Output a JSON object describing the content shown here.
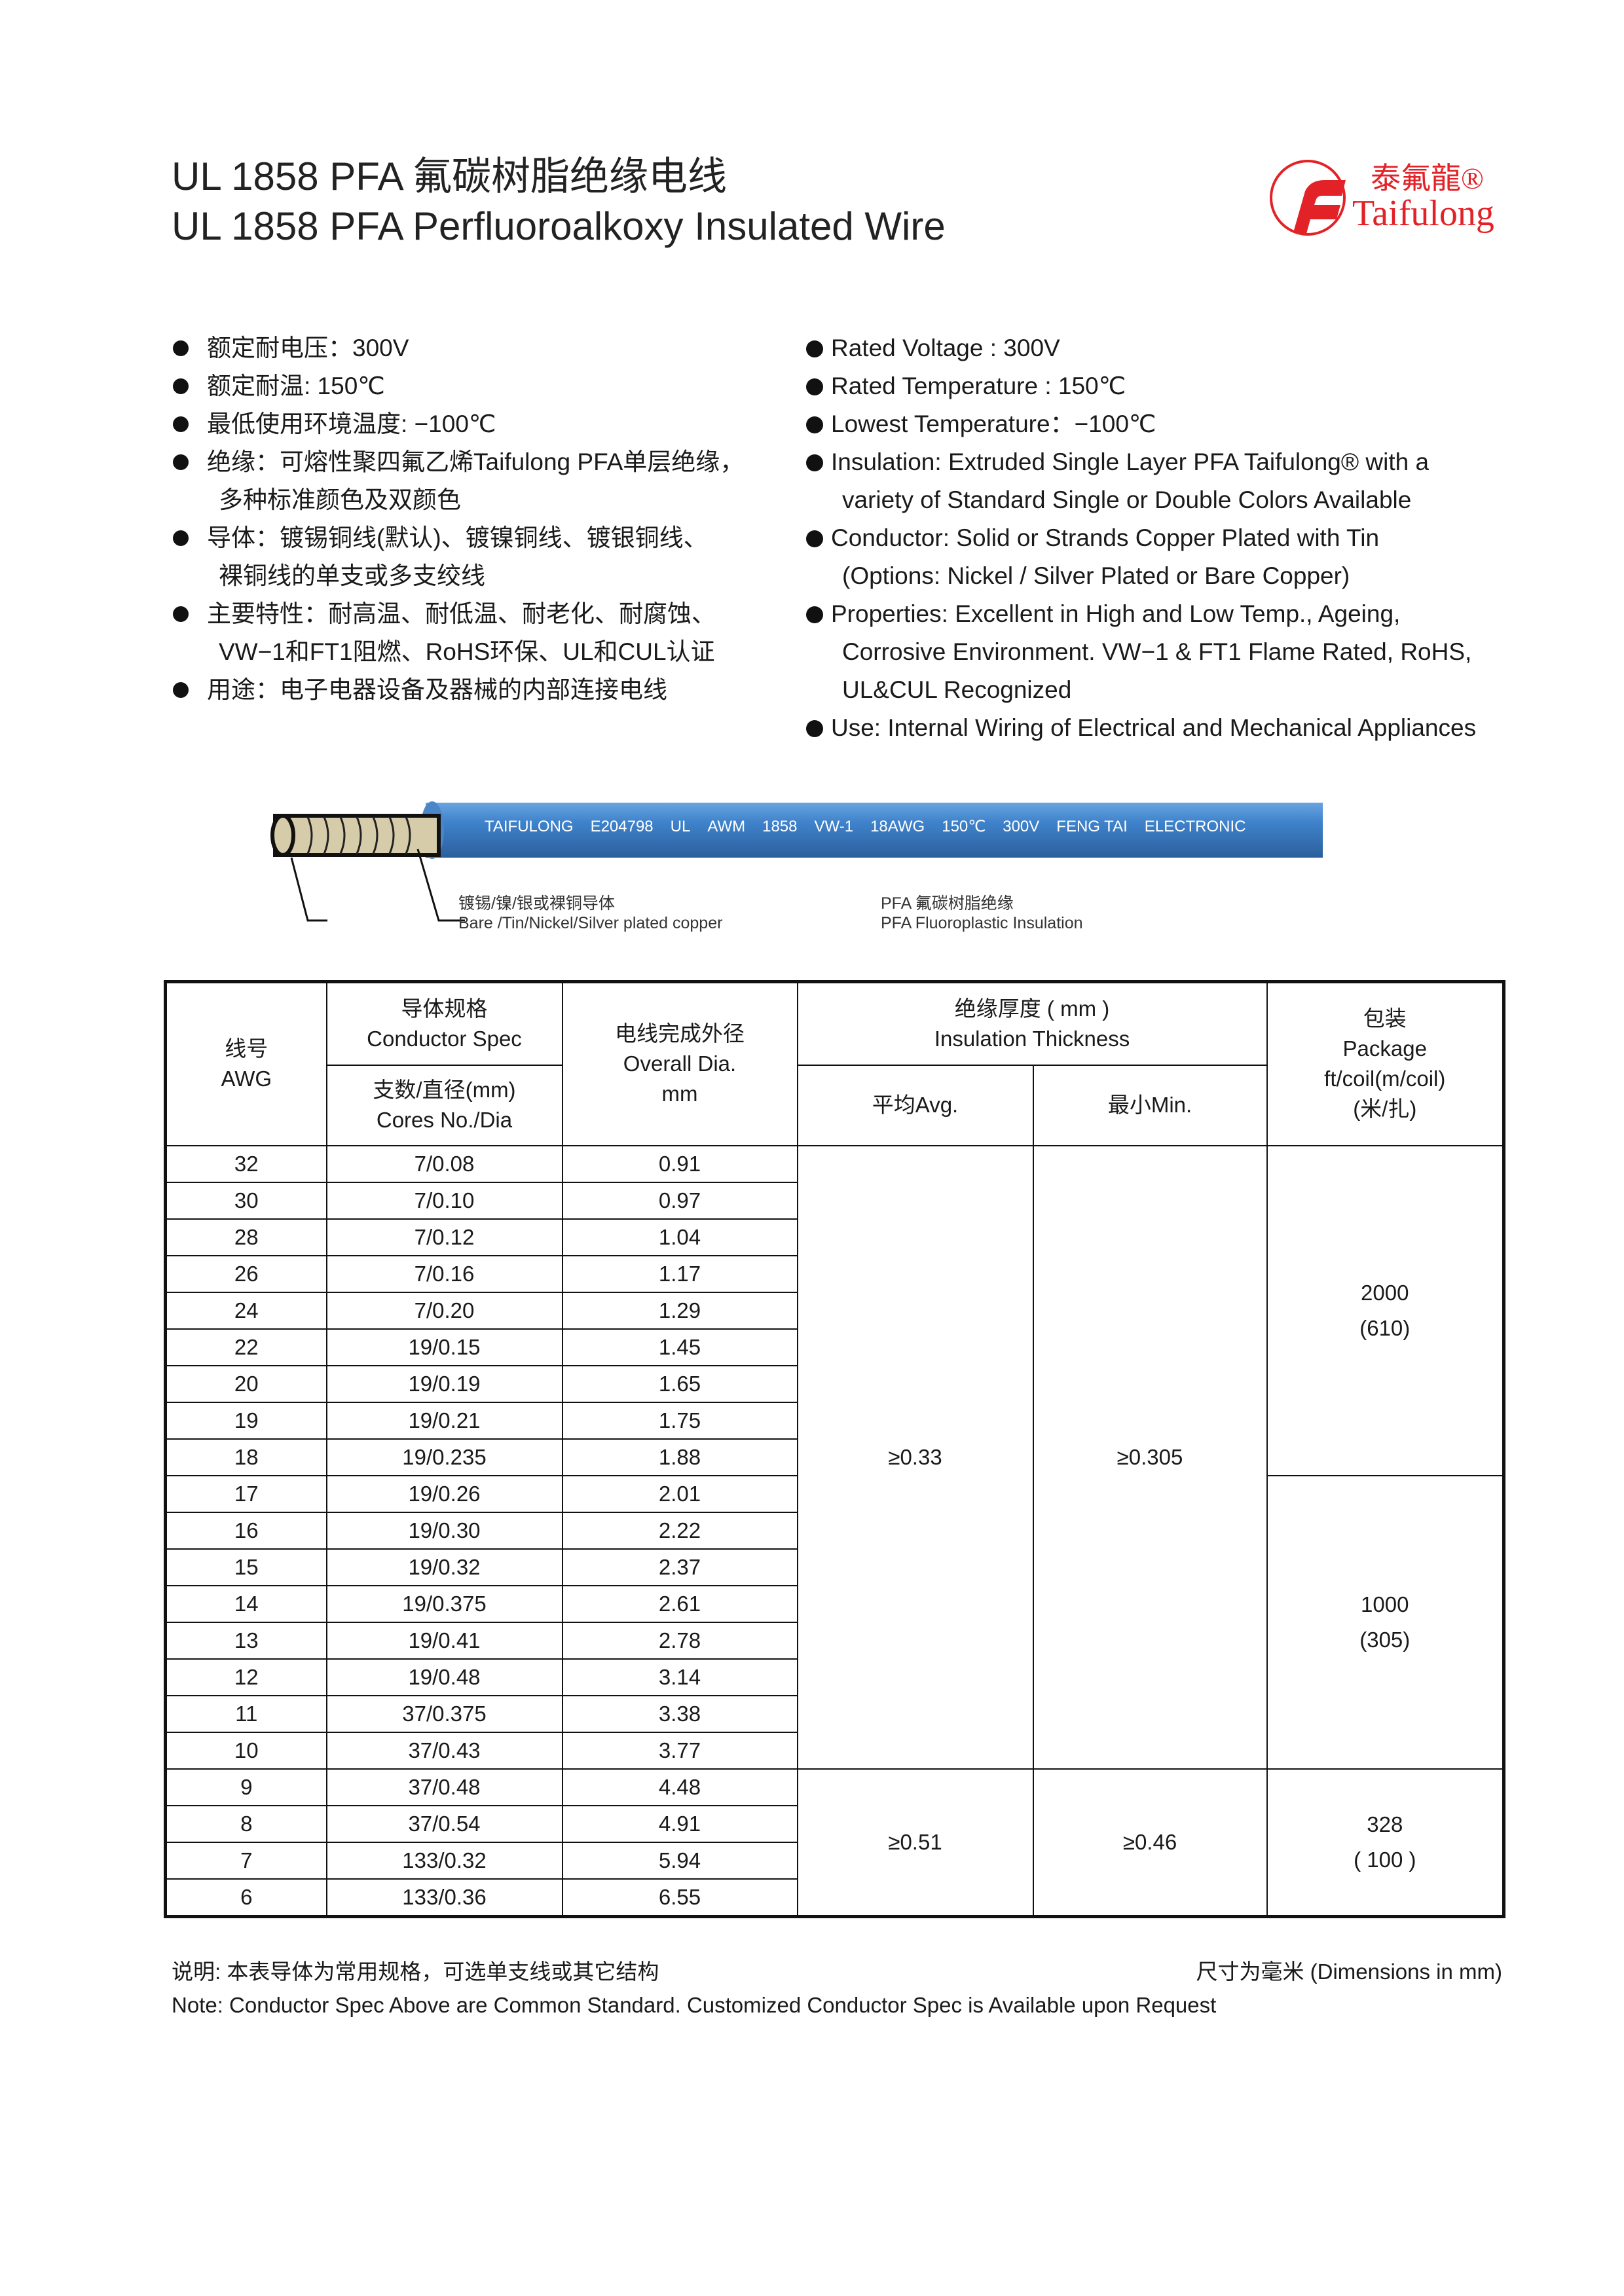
{
  "header": {
    "title_cn": "UL 1858 PFA 氟碳树脂绝缘电线",
    "title_en": "UL 1858 PFA Perfluoroalkoxy Insulated Wire",
    "logo": {
      "cn": "泰氟龍®",
      "en": "Taifulong",
      "color": "#e32227"
    }
  },
  "features_cn": [
    {
      "text": "额定耐电压：300V",
      "bullet": true
    },
    {
      "text": "额定耐温: 150℃",
      "bullet": true
    },
    {
      "text": "最低使用环境温度: −100℃",
      "bullet": true
    },
    {
      "text": "绝缘：可熔性聚四氟乙烯Taifulong PFA单层绝缘，",
      "bullet": true
    },
    {
      "text": "多种标准颜色及双颜色",
      "bullet": false
    },
    {
      "text": "导体：镀锡铜线(默认)、镀镍铜线、镀银铜线、",
      "bullet": true
    },
    {
      "text": "裸铜线的单支或多支绞线",
      "bullet": false
    },
    {
      "text": "主要特性：耐高温、耐低温、耐老化、耐腐蚀、",
      "bullet": true
    },
    {
      "text": "VW−1和FT1阻燃、RoHS环保、UL和CUL认证",
      "bullet": false
    },
    {
      "text": "用途：电子电器设备及器械的内部连接电线",
      "bullet": true
    }
  ],
  "features_en": [
    {
      "text": "Rated Voltage : 300V",
      "bullet": true
    },
    {
      "text": "Rated Temperature : 150℃",
      "bullet": true
    },
    {
      "text": "Lowest Temperature：−100℃",
      "bullet": true
    },
    {
      "text": "Insulation: Extruded Single Layer PFA Taifulong® with a",
      "bullet": true
    },
    {
      "text": "variety of Standard Single or Double Colors Available",
      "bullet": false
    },
    {
      "text": "Conductor: Solid or Strands Copper Plated with Tin",
      "bullet": true
    },
    {
      "text": "(Options: Nickel / Silver Plated or Bare Copper)",
      "bullet": false
    },
    {
      "text": "Properties: Excellent in High and Low Temp., Ageing,",
      "bullet": true
    },
    {
      "text": "Corrosive Environment. VW−1 & FT1 Flame Rated, RoHS,",
      "bullet": false
    },
    {
      "text": "UL&CUL Recognized",
      "bullet": false
    },
    {
      "text": "Use: Internal Wiring of Electrical and Mechanical Appliances",
      "bullet": true
    }
  ],
  "cable": {
    "print": [
      "TAIFULONG",
      "E204798",
      "UL",
      "AWM",
      "1858",
      "VW-1",
      "18AWG",
      "150℃",
      "300V",
      "FENG TAI",
      "ELECTRONIC"
    ],
    "conductor_label_cn": "镀锡/镍/银或裸铜导体",
    "conductor_label_en": "Bare /Tin/Nickel/Silver plated copper",
    "insulation_label_cn": "PFA 氟碳树脂绝缘",
    "insulation_label_en": "PFA Fluoroplastic Insulation",
    "insulation_color": "#3a7cc4",
    "conductor_color": "#d6ccaa"
  },
  "table": {
    "headers": {
      "awg_cn": "线号",
      "awg_en": "AWG",
      "cond_cn": "导体规格",
      "cond_en": "Conductor Spec",
      "cores_cn": "支数/直径(mm)",
      "cores_en": "Cores No./Dia",
      "od_cn": "电线完成外径",
      "od_en": "Overall  Dia.",
      "od_unit": "mm",
      "ins_cn": "绝缘厚度 ( mm )",
      "ins_en": "Insulation Thickness",
      "avg": "平均Avg.",
      "min": "最小Min.",
      "pkg_cn": "包装",
      "pkg_en": "Package",
      "pkg_unit": "ft/coil(m/coil)",
      "pkg_unit_cn": "(米/扎)"
    },
    "rows": [
      [
        "32",
        "7/0.08",
        "0.91"
      ],
      [
        "30",
        "7/0.10",
        "0.97"
      ],
      [
        "28",
        "7/0.12",
        "1.04"
      ],
      [
        "26",
        "7/0.16",
        "1.17"
      ],
      [
        "24",
        "7/0.20",
        "1.29"
      ],
      [
        "22",
        "19/0.15",
        "1.45"
      ],
      [
        "20",
        "19/0.19",
        "1.65"
      ],
      [
        "19",
        "19/0.21",
        "1.75"
      ],
      [
        "18",
        "19/0.235",
        "1.88"
      ],
      [
        "17",
        "19/0.26",
        "2.01"
      ],
      [
        "16",
        "19/0.30",
        "2.22"
      ],
      [
        "15",
        "19/0.32",
        "2.37"
      ],
      [
        "14",
        "19/0.375",
        "2.61"
      ],
      [
        "13",
        "19/0.41",
        "2.78"
      ],
      [
        "12",
        "19/0.48",
        "3.14"
      ],
      [
        "11",
        "37/0.375",
        "3.38"
      ],
      [
        "10",
        "37/0.43",
        "3.77"
      ],
      [
        "9",
        "37/0.48",
        "4.48"
      ],
      [
        "8",
        "37/0.54",
        "4.91"
      ],
      [
        "7",
        "133/0.32",
        "5.94"
      ],
      [
        "6",
        "133/0.36",
        "6.55"
      ]
    ],
    "insulation_groups": [
      {
        "rows": 17,
        "avg": "≥0.33",
        "min": "≥0.305"
      },
      {
        "rows": 4,
        "avg": "≥0.51",
        "min": "≥0.46"
      }
    ],
    "package_groups": [
      {
        "rows": 9,
        "ft": "2000",
        "m": "(610)"
      },
      {
        "rows": 8,
        "ft": "1000",
        "m": "(305)"
      },
      {
        "rows": 4,
        "ft": "328",
        "m": "( 100 )"
      }
    ]
  },
  "notes": {
    "cn": "说明: 本表导体为常用规格，可选单支线或其它结构",
    "units": "尺寸为毫米 (Dimensions in mm)",
    "en": "Note: Conductor Spec Above are Common Standard. Customized Conductor Spec is Available upon Request"
  }
}
